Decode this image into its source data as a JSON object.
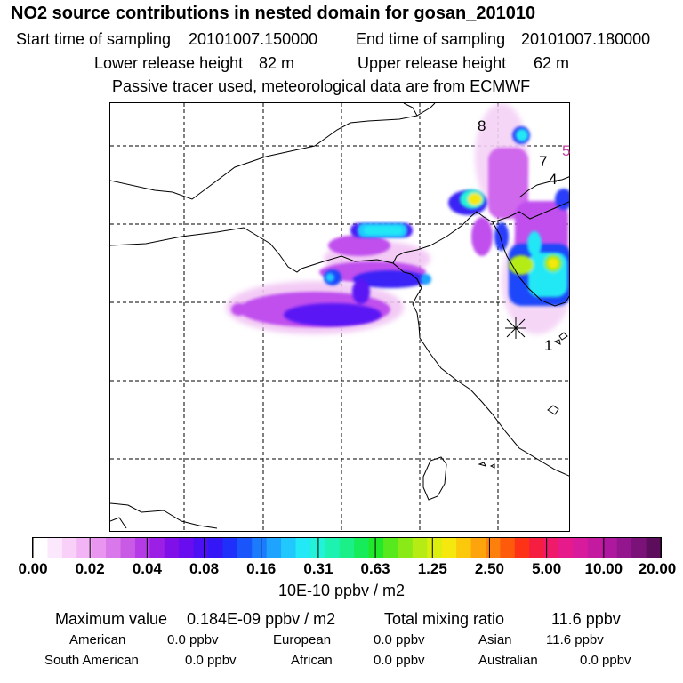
{
  "header": {
    "title": "NO2 source contributions in nested domain for gosan_201010",
    "start_label": "Start time of sampling",
    "start_value": "20101007.150000",
    "end_label": "End time of sampling",
    "end_value": "20101007.180000",
    "lower_label": "Lower release height",
    "lower_value": "82 m",
    "upper_label": "Upper release height",
    "upper_value": "62 m",
    "note": "Passive tracer used, meteorological data are from ECMWF"
  },
  "map": {
    "receptor_symbol": "receptor-star",
    "region_labels": [
      "8",
      "5",
      "7",
      "4",
      "1"
    ]
  },
  "chart_data": {
    "type": "heatmap",
    "title": "NO2 source contributions in nested domain for gosan_201010",
    "colorbar": {
      "ticks": [
        "0.00",
        "0.02",
        "0.04",
        "0.08",
        "0.16",
        "0.31",
        "0.63",
        "1.25",
        "2.50",
        "5.00",
        "10.00",
        "20.00"
      ],
      "colors": [
        "#ffffff",
        "#fce8fc",
        "#f8d0f8",
        "#f2b4f4",
        "#e896ef",
        "#d978ea",
        "#c95ae6",
        "#b43be6",
        "#9c1fe6",
        "#8010e8",
        "#6a0cf0",
        "#4c10f4",
        "#3416f6",
        "#1f30fa",
        "#1a55fc",
        "#1c7bfd",
        "#1ea3fe",
        "#20c8fe",
        "#23e8f6",
        "#22f2d8",
        "#1ef2b0",
        "#1aef88",
        "#16ec5a",
        "#22e82a",
        "#58e81e",
        "#8aea18",
        "#b6ec14",
        "#dcee10",
        "#f5e80e",
        "#fcc80c",
        "#fda40c",
        "#fd800c",
        "#fd5a0c",
        "#fd3216",
        "#f51e40",
        "#ef1a6a",
        "#e71a8c",
        "#d81a9c",
        "#c41aa0",
        "#ae189e",
        "#94168e",
        "#7a1278",
        "#5c0e5c"
      ],
      "units": "10E-10 ppbv / m2"
    },
    "max_value": "0.184E-09 ppbv / m2",
    "total_mixing_ratio": "11.6 ppbv"
  },
  "stats": {
    "max_label": "Maximum value",
    "max_value": "0.184E-09 ppbv / m2",
    "total_label": "Total mixing ratio",
    "total_value": "11.6 ppbv",
    "american_label": "American",
    "american_value": "0.0 ppbv",
    "european_label": "European",
    "european_value": "0.0 ppbv",
    "asian_label": "Asian",
    "asian_value": "11.6 ppbv",
    "south_american_label": "South American",
    "south_american_value": "0.0 ppbv",
    "african_label": "African",
    "african_value": "0.0 ppbv",
    "australian_label": "Australian",
    "australian_value": "0.0 ppbv"
  }
}
